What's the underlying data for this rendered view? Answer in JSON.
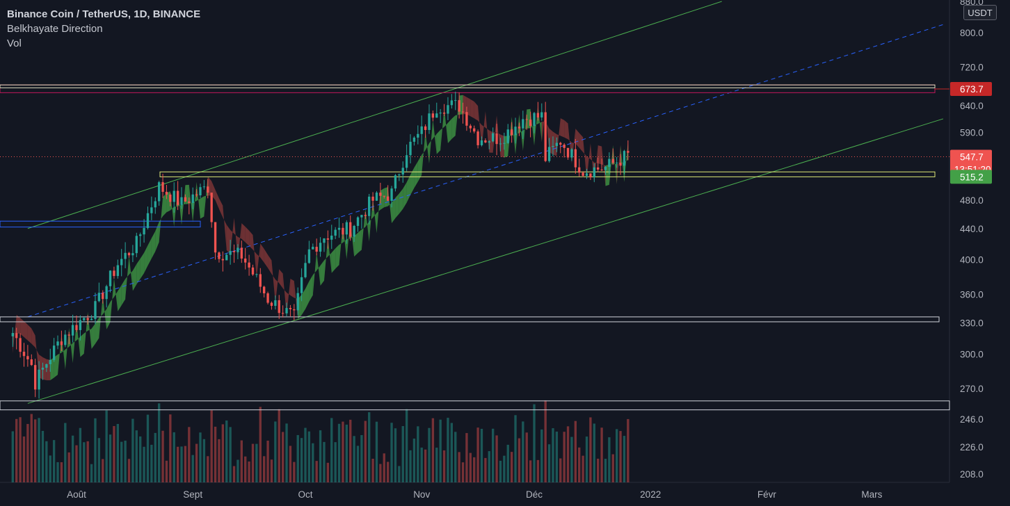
{
  "header": {
    "symbol_title": "Binance Coin / TetherUS, 1D, BINANCE",
    "indicator_1": "Belkhayate Direction",
    "indicator_2": "Vol"
  },
  "price_axis": {
    "currency": "USDT",
    "ticks": [
      "880.0",
      "800.0",
      "720.0",
      "640.0",
      "590.0",
      "480.0",
      "440.0",
      "400.0",
      "360.0",
      "330.0",
      "300.0",
      "270.0",
      "246.0",
      "226.0",
      "208.0"
    ],
    "tags": [
      {
        "label": "673.7",
        "color": "#c62828"
      },
      {
        "label": "547.7",
        "color": "#ef5350",
        "sub": "13:51:20"
      },
      {
        "label": "515.2",
        "color": "#43a047"
      }
    ]
  },
  "time_axis": {
    "labels": [
      "Août",
      "Sept",
      "Oct",
      "Nov",
      "Déc",
      "2022",
      "Févr",
      "Mars"
    ]
  },
  "colors": {
    "background": "#131722",
    "up": "#26a69a",
    "down": "#ef5350",
    "band_up": "#43a047",
    "band_down": "#8b3a3a",
    "channel": "#4caf50",
    "midline": "#2962ff",
    "zone_upper": "#c2185b"
  },
  "chart_data": {
    "type": "candlestick",
    "symbol": "Binance Coin / TetherUS",
    "interval": "1D",
    "exchange": "BINANCE",
    "scale": "log",
    "y_range": [
      208,
      880
    ],
    "x_range": [
      "2021-07-15",
      "2022-03-20"
    ],
    "last_price": 547.7,
    "marked_levels": [
      673.7,
      515.2
    ],
    "approx_close_path": [
      {
        "date": "2021-07-15",
        "close": 320
      },
      {
        "date": "2021-07-20",
        "close": 290
      },
      {
        "date": "2021-07-21",
        "close": 275
      },
      {
        "date": "2021-07-28",
        "close": 315
      },
      {
        "date": "2021-08-06",
        "close": 345
      },
      {
        "date": "2021-08-12",
        "close": 395
      },
      {
        "date": "2021-08-17",
        "close": 420
      },
      {
        "date": "2021-08-23",
        "close": 500
      },
      {
        "date": "2021-08-29",
        "close": 475
      },
      {
        "date": "2021-09-05",
        "close": 500
      },
      {
        "date": "2021-09-07",
        "close": 410
      },
      {
        "date": "2021-09-14",
        "close": 405
      },
      {
        "date": "2021-09-21",
        "close": 355
      },
      {
        "date": "2021-09-28",
        "close": 335
      },
      {
        "date": "2021-10-02",
        "close": 410
      },
      {
        "date": "2021-10-06",
        "close": 430
      },
      {
        "date": "2021-10-13",
        "close": 440
      },
      {
        "date": "2021-10-19",
        "close": 480
      },
      {
        "date": "2021-10-24",
        "close": 490
      },
      {
        "date": "2021-10-28",
        "close": 560
      },
      {
        "date": "2021-11-01",
        "close": 590
      },
      {
        "date": "2021-11-05",
        "close": 640
      },
      {
        "date": "2021-11-11",
        "close": 640
      },
      {
        "date": "2021-11-16",
        "close": 580
      },
      {
        "date": "2021-11-22",
        "close": 580
      },
      {
        "date": "2021-11-28",
        "close": 615
      },
      {
        "date": "2021-12-03",
        "close": 620
      },
      {
        "date": "2021-12-04",
        "close": 545
      },
      {
        "date": "2021-12-08",
        "close": 575
      },
      {
        "date": "2021-12-14",
        "close": 525
      },
      {
        "date": "2021-12-20",
        "close": 530
      },
      {
        "date": "2021-12-26",
        "close": 550
      }
    ]
  }
}
